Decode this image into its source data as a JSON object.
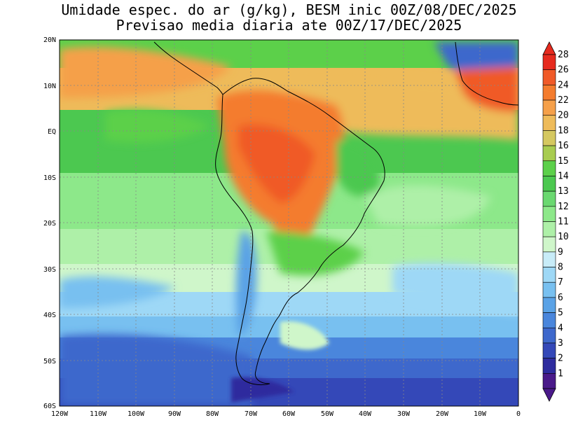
{
  "title": {
    "line1": "Umidade espec. do ar (g/kg), BESM inic 00Z/08/DEC/2025",
    "line2": "Previsao media diaria ate 00Z/17/DEC/2025"
  },
  "map": {
    "lat_labels": [
      "20N",
      "10N",
      "EQ",
      "10S",
      "20S",
      "30S",
      "40S",
      "50S",
      "60S"
    ],
    "lon_labels": [
      "120W",
      "110W",
      "100W",
      "90W",
      "80W",
      "70W",
      "60W",
      "50W",
      "40W",
      "30W",
      "20W",
      "10W",
      "0"
    ],
    "lat_range": [
      -60,
      20
    ],
    "lon_range": [
      -120,
      0
    ]
  },
  "colorbar": {
    "levels": [
      "28",
      "26",
      "24",
      "22",
      "20",
      "18",
      "16",
      "15",
      "14",
      "13",
      "12",
      "11",
      "10",
      "9",
      "8",
      "7",
      "6",
      "5",
      "4",
      "3",
      "2",
      "1"
    ],
    "colors": [
      "#e62a1e",
      "#f05a28",
      "#f47c2e",
      "#f5a04a",
      "#eebb5a",
      "#d5c860",
      "#a8cc50",
      "#5cd04a",
      "#4cc850",
      "#6ad870",
      "#8de88a",
      "#aef0a8",
      "#cff6ca",
      "#c8ecf8",
      "#9ed8f6",
      "#78c0f0",
      "#5aa2e6",
      "#4a86dc",
      "#3e68cc",
      "#3448b8",
      "#2e2c9e",
      "#4a1a8a"
    ]
  },
  "regions": {
    "north_sa_humidity": "22",
    "southern_ocean_humidity": "4",
    "andes_humidity": "6"
  }
}
